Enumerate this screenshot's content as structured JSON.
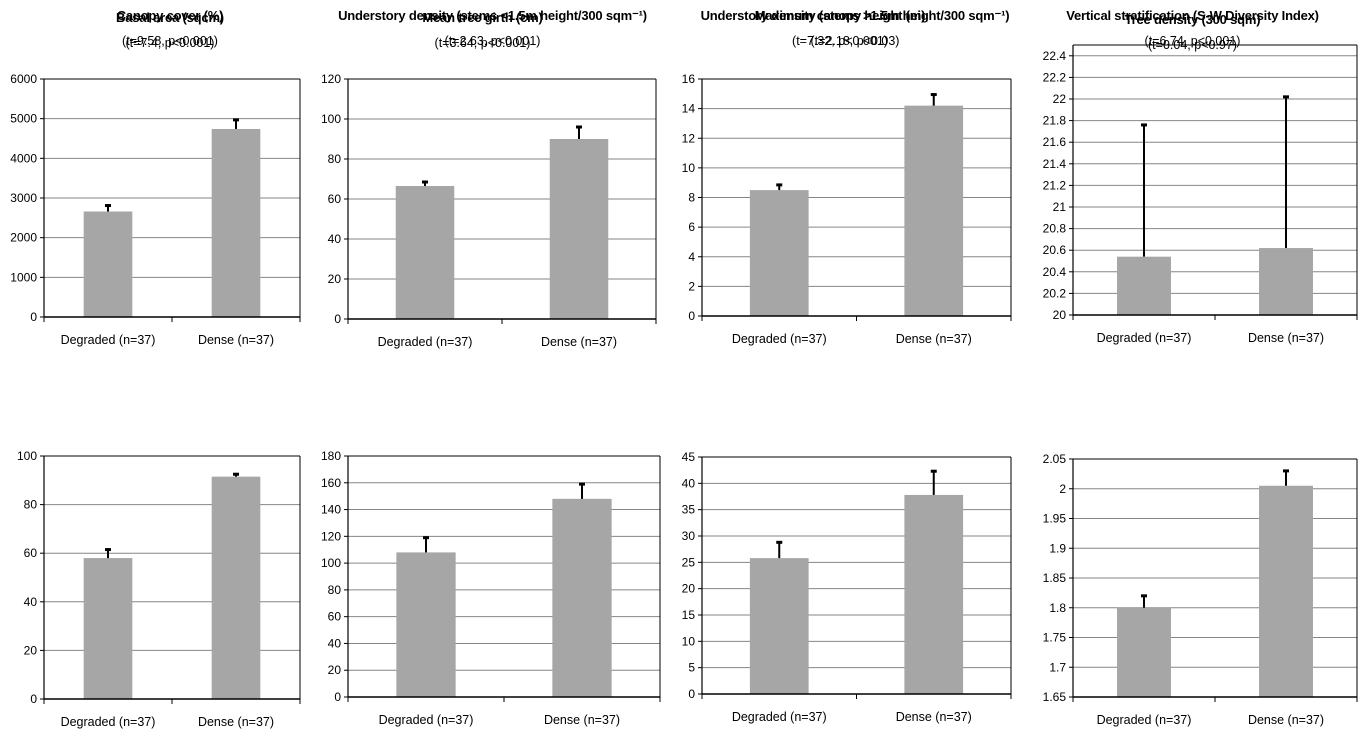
{
  "colors": {
    "bar": "#a6a6a6",
    "grid": "#868686",
    "axis": "#000000",
    "error": "#000000"
  },
  "chart_data": [
    {
      "type": "bar",
      "title": "Basal area (sqcm)",
      "subtitle": "(t=7.4, p<0.001)",
      "categories": [
        "Degraded (n=37)",
        "Dense (n=37)"
      ],
      "values": [
        2660,
        4740
      ],
      "errors": [
        150,
        230
      ],
      "ylim": [
        0,
        6000
      ],
      "yticks": [
        0,
        1000,
        2000,
        3000,
        4000,
        5000,
        6000
      ],
      "ytick_labels": [
        "0",
        "1000",
        "2000",
        "3000",
        "4000",
        "5000",
        "6000"
      ],
      "grid": true
    },
    {
      "type": "bar",
      "title": "Mean tree girth (cm)",
      "subtitle": "(t=3.64, p<0.001)",
      "categories": [
        "Degraded (n=37)",
        "Dense (n=37)"
      ],
      "values": [
        66.5,
        90
      ],
      "errors": [
        2,
        6
      ],
      "ylim": [
        0,
        120
      ],
      "yticks": [
        0,
        20,
        40,
        60,
        80,
        100,
        120
      ],
      "ytick_labels": [
        "0",
        "20",
        "40",
        "60",
        "80",
        "100",
        "120"
      ],
      "grid": true
    },
    {
      "type": "bar",
      "title": "Maximum canopy height (m)",
      "subtitle": "(t=7.32, p<0.001)",
      "categories": [
        "Degraded (n=37)",
        "Dense (n=37)"
      ],
      "values": [
        8.5,
        14.2
      ],
      "errors": [
        0.35,
        0.75
      ],
      "ylim": [
        0,
        16
      ],
      "yticks": [
        0,
        2,
        4,
        6,
        8,
        10,
        12,
        14,
        16
      ],
      "ytick_labels": [
        "0",
        "2",
        "4",
        "6",
        "8",
        "10",
        "12",
        "14",
        "16"
      ],
      "grid": true
    },
    {
      "type": "bar",
      "title": "Tree density (300 sqm)",
      "subtitle": "(t=0.04, p<0.97)",
      "categories": [
        "Degraded (n=37)",
        "Dense (n=37)"
      ],
      "values": [
        20.54,
        20.62
      ],
      "errors": [
        1.22,
        1.4
      ],
      "ylim": [
        20,
        22.5
      ],
      "yticks": [
        20,
        20.2,
        20.4,
        20.6,
        20.8,
        21,
        21.2,
        21.4,
        21.6,
        21.8,
        22,
        22.2,
        22.4
      ],
      "ytick_labels": [
        "20",
        "20.2",
        "20.4",
        "20.6",
        "20.8",
        "21",
        "21.2",
        "21.4",
        "21.6",
        "21.8",
        "22",
        "22.2",
        "22.4"
      ],
      "grid": true
    },
    {
      "type": "bar",
      "title": "Canopy cover (%)",
      "subtitle": "(t=9.58, p<0.001)",
      "categories": [
        "Degraded (n=37)",
        "Dense (n=37)"
      ],
      "values": [
        58,
        91.5
      ],
      "errors": [
        3.5,
        1
      ],
      "ylim": [
        0,
        100
      ],
      "yticks": [
        0,
        20,
        40,
        60,
        80,
        100
      ],
      "ytick_labels": [
        "0",
        "20",
        "40",
        "60",
        "80",
        "100"
      ],
      "grid": true
    },
    {
      "type": "bar",
      "title": "Understory density (stems <1.5m height/300 sqm⁻¹)",
      "subtitle": "(t=2.63, p<0.001)",
      "categories": [
        "Degraded (n=37)",
        "Dense (n=37)"
      ],
      "values": [
        108,
        148
      ],
      "errors": [
        11,
        11
      ],
      "ylim": [
        0,
        180
      ],
      "yticks": [
        0,
        20,
        40,
        60,
        80,
        100,
        120,
        140,
        160,
        180
      ],
      "ytick_labels": [
        "0",
        "20",
        "40",
        "60",
        "80",
        "100",
        "120",
        "140",
        "160",
        "180"
      ],
      "grid": true
    },
    {
      "type": "bar",
      "title": "Understory density (stems >1.5m height/300 sqm⁻¹)",
      "subtitle": "(t=2.18, p<0.03)",
      "categories": [
        "Degraded (n=37)",
        "Dense (n=37)"
      ],
      "values": [
        25.8,
        37.8
      ],
      "errors": [
        3,
        4.5
      ],
      "ylim": [
        0,
        45
      ],
      "yticks": [
        0,
        5,
        10,
        15,
        20,
        25,
        30,
        35,
        40,
        45
      ],
      "ytick_labels": [
        "0",
        "5",
        "10",
        "15",
        "20",
        "25",
        "30",
        "35",
        "40",
        "45"
      ],
      "grid": true
    },
    {
      "type": "bar",
      "title": "Vertical stratification  (S-W Diversity Index)",
      "subtitle": "(t=6.74, p<0.001)",
      "categories": [
        "Degraded (n=37)",
        "Dense (n=37)"
      ],
      "values": [
        1.8,
        2.005
      ],
      "errors": [
        0.02,
        0.025
      ],
      "ylim": [
        1.65,
        2.05
      ],
      "yticks": [
        1.65,
        1.7,
        1.75,
        1.8,
        1.85,
        1.9,
        1.95,
        2,
        2.05
      ],
      "ytick_labels": [
        "1.65",
        "1.7",
        "1.75",
        "1.8",
        "1.85",
        "1.9",
        "1.95",
        "2",
        "2.05"
      ],
      "grid": true
    }
  ]
}
